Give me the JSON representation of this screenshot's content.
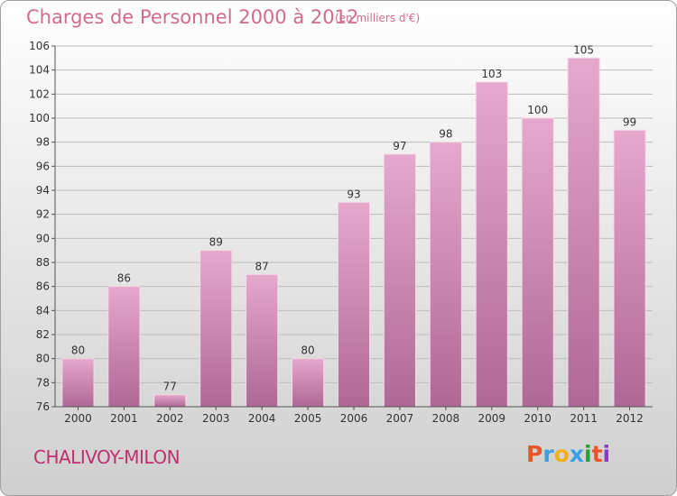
{
  "header": {
    "title": "Charges de Personnel 2000 à 2012",
    "subtitle": "(en milliers d'€)"
  },
  "footer": {
    "place": "CHALIVOY-MILON",
    "logo_letters": [
      "P",
      "r",
      "o",
      "x",
      "i",
      "t",
      "i"
    ],
    "logo_colors": [
      "#e8562a",
      "#3ca0e0",
      "#f0b020",
      "#3ca0e0",
      "#2aa03c",
      "#e8562a",
      "#8a3cc8"
    ]
  },
  "colors": {
    "bar_top": "#e6a8cc",
    "bar_bottom": "#ae6894",
    "axis": "#555555",
    "grid": "#bdbdbd"
  },
  "chart_data": {
    "type": "bar",
    "title": "Charges de Personnel 2000 à 2012",
    "subtitle": "(en milliers d'€)",
    "categories": [
      "2000",
      "2001",
      "2002",
      "2003",
      "2004",
      "2005",
      "2006",
      "2007",
      "2008",
      "2009",
      "2010",
      "2011",
      "2012"
    ],
    "values": [
      80,
      86,
      77,
      89,
      87,
      80,
      93,
      97,
      98,
      103,
      100,
      105,
      99
    ],
    "ylim": [
      76,
      106
    ],
    "yticks": [
      76,
      78,
      80,
      82,
      84,
      86,
      88,
      90,
      92,
      94,
      96,
      98,
      100,
      102,
      104,
      106
    ],
    "grid": true,
    "data_labels": true
  }
}
